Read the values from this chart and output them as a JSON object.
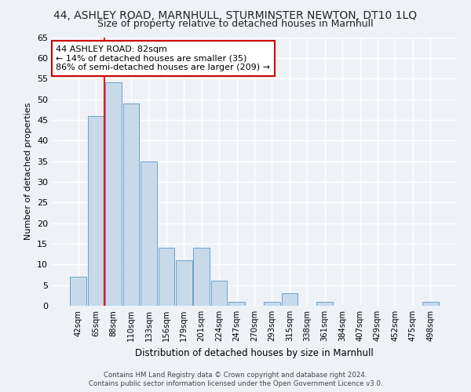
{
  "title": "44, ASHLEY ROAD, MARNHULL, STURMINSTER NEWTON, DT10 1LQ",
  "subtitle": "Size of property relative to detached houses in Marnhull",
  "xlabel": "Distribution of detached houses by size in Marnhull",
  "ylabel": "Number of detached properties",
  "bin_labels": [
    "42sqm",
    "65sqm",
    "88sqm",
    "110sqm",
    "133sqm",
    "156sqm",
    "179sqm",
    "201sqm",
    "224sqm",
    "247sqm",
    "270sqm",
    "293sqm",
    "315sqm",
    "338sqm",
    "361sqm",
    "384sqm",
    "407sqm",
    "429sqm",
    "452sqm",
    "475sqm",
    "498sqm"
  ],
  "bar_values": [
    7,
    46,
    54,
    49,
    35,
    14,
    11,
    14,
    6,
    1,
    0,
    1,
    3,
    0,
    1,
    0,
    0,
    0,
    0,
    0,
    1
  ],
  "bar_color": "#c8d9ea",
  "bar_edge_color": "#6aa3c8",
  "annotation_title": "44 ASHLEY ROAD: 82sqm",
  "annotation_line1": "← 14% of detached houses are smaller (35)",
  "annotation_line2": "86% of semi-detached houses are larger (209) →",
  "annotation_box_color": "#ffffff",
  "annotation_box_edge": "#cc0000",
  "ylim": [
    0,
    65
  ],
  "yticks": [
    0,
    5,
    10,
    15,
    20,
    25,
    30,
    35,
    40,
    45,
    50,
    55,
    60,
    65
  ],
  "footer_line1": "Contains HM Land Registry data © Crown copyright and database right 2024.",
  "footer_line2": "Contains public sector information licensed under the Open Government Licence v3.0.",
  "background_color": "#eef2f7",
  "grid_color": "#ffffff",
  "title_fontsize": 10,
  "subtitle_fontsize": 9
}
